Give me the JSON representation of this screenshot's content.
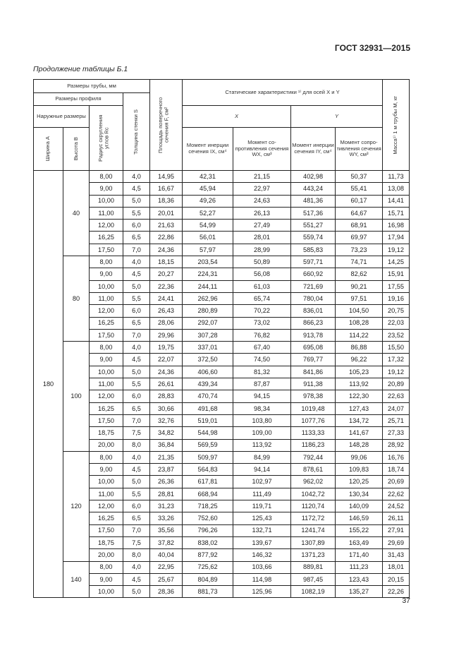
{
  "header": {
    "doc_code": "ГОСТ 32931—2015"
  },
  "caption": "Продолжение таблицы Б.1",
  "table": {
    "headers": {
      "pipe_sizes": "Размеры трубы, мм",
      "profile_sizes": "Размеры профиля",
      "outer_sizes": "Наружные размеры",
      "width_a": "Ширина А",
      "height_b": "Высота В",
      "radius": "Радиус скругления углов Rc",
      "wall": "Толщина стенки S",
      "area": "Площадь поперечного сечения F, см²",
      "static": "Статические характеристики ¹⁾ для осей X и Y",
      "axis_x": "X",
      "axis_y": "Y",
      "ix": "Момент инерции сечения IX, см⁴",
      "wx": "Момент со-противления сечения WX, см³",
      "iy": "Момент инерции сечения IY, см⁴",
      "wy": "Момент сопро-тивления сечения WY, см³",
      "mass": "Масса¹⁾ 1 м трубы М, кг"
    },
    "width_a": "180",
    "groups": [
      {
        "height_b": "40",
        "rows": [
          [
            "8,00",
            "4,0",
            "14,95",
            "42,31",
            "21,15",
            "402,98",
            "50,37",
            "11,73"
          ],
          [
            "9,00",
            "4,5",
            "16,67",
            "45,94",
            "22,97",
            "443,24",
            "55,41",
            "13,08"
          ],
          [
            "10,00",
            "5,0",
            "18,36",
            "49,26",
            "24,63",
            "481,36",
            "60,17",
            "14,41"
          ],
          [
            "11,00",
            "5,5",
            "20,01",
            "52,27",
            "26,13",
            "517,36",
            "64,67",
            "15,71"
          ],
          [
            "12,00",
            "6,0",
            "21,63",
            "54,99",
            "27,49",
            "551,27",
            "68,91",
            "16,98"
          ],
          [
            "16,25",
            "6,5",
            "22,86",
            "56,01",
            "28,01",
            "559,74",
            "69,97",
            "17,94"
          ],
          [
            "17,50",
            "7,0",
            "24,36",
            "57,97",
            "28,99",
            "585,83",
            "73,23",
            "19,12"
          ]
        ]
      },
      {
        "height_b": "80",
        "rows": [
          [
            "8,00",
            "4,0",
            "18,15",
            "203,54",
            "50,89",
            "597,71",
            "74,71",
            "14,25"
          ],
          [
            "9,00",
            "4,5",
            "20,27",
            "224,31",
            "56,08",
            "660,92",
            "82,62",
            "15,91"
          ],
          [
            "10,00",
            "5,0",
            "22,36",
            "244,11",
            "61,03",
            "721,69",
            "90,21",
            "17,55"
          ],
          [
            "11,00",
            "5,5",
            "24,41",
            "262,96",
            "65,74",
            "780,04",
            "97,51",
            "19,16"
          ],
          [
            "12,00",
            "6,0",
            "26,43",
            "280,89",
            "70,22",
            "836,01",
            "104,50",
            "20,75"
          ],
          [
            "16,25",
            "6,5",
            "28,06",
            "292,07",
            "73,02",
            "866,23",
            "108,28",
            "22,03"
          ],
          [
            "17,50",
            "7,0",
            "29,96",
            "307,28",
            "76,82",
            "913,78",
            "114,22",
            "23,52"
          ]
        ]
      },
      {
        "height_b": "100",
        "rows": [
          [
            "8,00",
            "4,0",
            "19,75",
            "337,01",
            "67,40",
            "695,08",
            "86,88",
            "15,50"
          ],
          [
            "9,00",
            "4,5",
            "22,07",
            "372,50",
            "74,50",
            "769,77",
            "96,22",
            "17,32"
          ],
          [
            "10,00",
            "5,0",
            "24,36",
            "406,60",
            "81,32",
            "841,86",
            "105,23",
            "19,12"
          ],
          [
            "11,00",
            "5,5",
            "26,61",
            "439,34",
            "87,87",
            "911,38",
            "113,92",
            "20,89"
          ],
          [
            "12,00",
            "6,0",
            "28,83",
            "470,74",
            "94,15",
            "978,38",
            "122,30",
            "22,63"
          ],
          [
            "16,25",
            "6,5",
            "30,66",
            "491,68",
            "98,34",
            "1019,48",
            "127,43",
            "24,07"
          ],
          [
            "17,50",
            "7,0",
            "32,76",
            "519,01",
            "103,80",
            "1077,76",
            "134,72",
            "25,71"
          ],
          [
            "18,75",
            "7,5",
            "34,82",
            "544,98",
            "109,00",
            "1133,33",
            "141,67",
            "27,33"
          ],
          [
            "20,00",
            "8,0",
            "36,84",
            "569,59",
            "113,92",
            "1186,23",
            "148,28",
            "28,92"
          ]
        ]
      },
      {
        "height_b": "120",
        "rows": [
          [
            "8,00",
            "4,0",
            "21,35",
            "509,97",
            "84,99",
            "792,44",
            "99,06",
            "16,76"
          ],
          [
            "9,00",
            "4,5",
            "23,87",
            "564,83",
            "94,14",
            "878,61",
            "109,83",
            "18,74"
          ],
          [
            "10,00",
            "5,0",
            "26,36",
            "617,81",
            "102,97",
            "962,02",
            "120,25",
            "20,69"
          ],
          [
            "11,00",
            "5,5",
            "28,81",
            "668,94",
            "111,49",
            "1042,72",
            "130,34",
            "22,62"
          ],
          [
            "12,00",
            "6,0",
            "31,23",
            "718,25",
            "119,71",
            "1120,74",
            "140,09",
            "24,52"
          ],
          [
            "16,25",
            "6,5",
            "33,26",
            "752,60",
            "125,43",
            "1172,72",
            "146,59",
            "26,11"
          ],
          [
            "17,50",
            "7,0",
            "35,56",
            "796,26",
            "132,71",
            "1241,74",
            "155,22",
            "27,91"
          ],
          [
            "18,75",
            "7,5",
            "37,82",
            "838,02",
            "139,67",
            "1307,89",
            "163,49",
            "29,69"
          ],
          [
            "20,00",
            "8,0",
            "40,04",
            "877,92",
            "146,32",
            "1371,23",
            "171,40",
            "31,43"
          ]
        ]
      },
      {
        "height_b": "140",
        "rows": [
          [
            "8,00",
            "4,0",
            "22,95",
            "725,62",
            "103,66",
            "889,81",
            "111,23",
            "18,01"
          ],
          [
            "9,00",
            "4,5",
            "25,67",
            "804,89",
            "114,98",
            "987,45",
            "123,43",
            "20,15"
          ],
          [
            "10,00",
            "5,0",
            "28,36",
            "881,73",
            "125,96",
            "1082,19",
            "135,27",
            "22,26"
          ]
        ]
      }
    ]
  },
  "footer": {
    "page_number": "37"
  }
}
